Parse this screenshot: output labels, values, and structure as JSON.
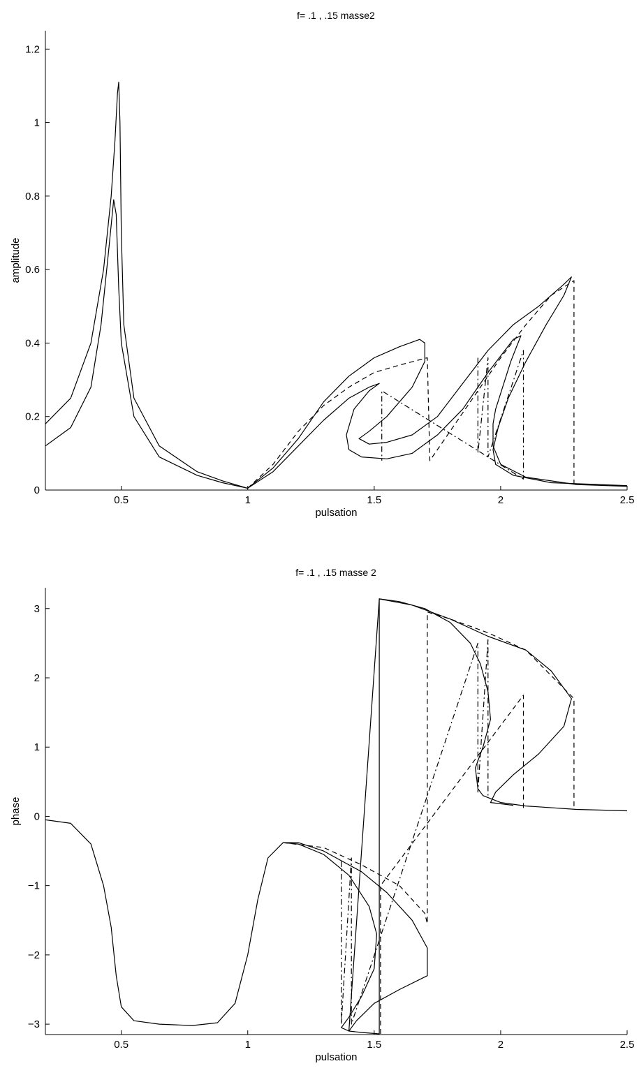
{
  "chart_data": [
    {
      "type": "line",
      "title": "f= .1 , .15 masse2",
      "xlabel": "pulsation",
      "ylabel": "amplitude",
      "xlim": [
        0.2,
        2.5
      ],
      "ylim": [
        0,
        1.25
      ],
      "xticks": [
        0.5,
        1,
        1.5,
        2,
        2.5
      ],
      "xtick_labels": [
        "0.5",
        "1",
        "1.5",
        "2",
        "2.5"
      ],
      "yticks": [
        0,
        0.2,
        0.4,
        0.6,
        0.8,
        1,
        1.2
      ],
      "ytick_labels": [
        "0",
        "0.2",
        "0.4",
        "0.6",
        "0.8",
        "1",
        "1.2"
      ],
      "grid": false,
      "series": [
        {
          "style": "solid",
          "points": [
            [
              0.2,
              0.18
            ],
            [
              0.3,
              0.25
            ],
            [
              0.38,
              0.4
            ],
            [
              0.43,
              0.6
            ],
            [
              0.46,
              0.8
            ],
            [
              0.475,
              0.95
            ],
            [
              0.485,
              1.08
            ],
            [
              0.49,
              1.11
            ],
            [
              0.495,
              1.0
            ],
            [
              0.5,
              0.7
            ],
            [
              0.51,
              0.45
            ],
            [
              0.55,
              0.25
            ],
            [
              0.65,
              0.12
            ],
            [
              0.8,
              0.05
            ],
            [
              0.9,
              0.025
            ],
            [
              1.0,
              0.005
            ],
            [
              1.1,
              0.05
            ],
            [
              1.2,
              0.12
            ],
            [
              1.3,
              0.19
            ],
            [
              1.4,
              0.25
            ],
            [
              1.48,
              0.28
            ],
            [
              1.52,
              0.29
            ],
            [
              1.48,
              0.27
            ],
            [
              1.42,
              0.22
            ],
            [
              1.39,
              0.15
            ],
            [
              1.4,
              0.11
            ],
            [
              1.45,
              0.09
            ],
            [
              1.55,
              0.085
            ],
            [
              1.65,
              0.1
            ],
            [
              1.75,
              0.15
            ],
            [
              1.85,
              0.22
            ],
            [
              1.95,
              0.32
            ],
            [
              2.05,
              0.41
            ],
            [
              2.08,
              0.42
            ],
            [
              2.04,
              0.35
            ],
            [
              1.98,
              0.22
            ],
            [
              1.97,
              0.18
            ],
            [
              1.97,
              0.12
            ],
            [
              2.0,
              0.07
            ],
            [
              2.1,
              0.035
            ],
            [
              2.3,
              0.015
            ],
            [
              2.5,
              0.01
            ]
          ]
        },
        {
          "style": "solid",
          "points": [
            [
              0.2,
              0.12
            ],
            [
              0.3,
              0.17
            ],
            [
              0.38,
              0.28
            ],
            [
              0.42,
              0.45
            ],
            [
              0.45,
              0.65
            ],
            [
              0.47,
              0.79
            ],
            [
              0.48,
              0.75
            ],
            [
              0.49,
              0.55
            ],
            [
              0.5,
              0.4
            ],
            [
              0.55,
              0.2
            ],
            [
              0.65,
              0.09
            ],
            [
              0.8,
              0.04
            ],
            [
              0.9,
              0.02
            ],
            [
              1.0,
              0.005
            ],
            [
              1.1,
              0.06
            ],
            [
              1.2,
              0.14
            ],
            [
              1.3,
              0.24
            ],
            [
              1.4,
              0.31
            ],
            [
              1.5,
              0.36
            ],
            [
              1.6,
              0.39
            ],
            [
              1.68,
              0.41
            ],
            [
              1.7,
              0.4
            ],
            [
              1.7,
              0.35
            ],
            [
              1.65,
              0.28
            ],
            [
              1.55,
              0.2
            ],
            [
              1.48,
              0.16
            ],
            [
              1.44,
              0.14
            ],
            [
              1.48,
              0.125
            ],
            [
              1.55,
              0.13
            ],
            [
              1.65,
              0.15
            ],
            [
              1.75,
              0.2
            ],
            [
              1.85,
              0.29
            ],
            [
              1.95,
              0.38
            ],
            [
              2.05,
              0.45
            ],
            [
              2.15,
              0.5
            ],
            [
              2.25,
              0.56
            ],
            [
              2.28,
              0.58
            ],
            [
              2.25,
              0.53
            ],
            [
              2.18,
              0.45
            ],
            [
              2.1,
              0.35
            ],
            [
              2.03,
              0.25
            ],
            [
              1.99,
              0.17
            ],
            [
              1.97,
              0.11
            ],
            [
              1.98,
              0.07
            ],
            [
              2.05,
              0.04
            ],
            [
              2.2,
              0.02
            ],
            [
              2.5,
              0.012
            ]
          ]
        },
        {
          "style": "dashed",
          "points": [
            [
              1.0,
              0.005
            ],
            [
              1.1,
              0.07
            ],
            [
              1.2,
              0.16
            ],
            [
              1.3,
              0.23
            ],
            [
              1.4,
              0.28
            ],
            [
              1.5,
              0.32
            ],
            [
              1.6,
              0.34
            ],
            [
              1.71,
              0.36
            ],
            [
              1.72,
              0.08
            ],
            [
              1.8,
              0.16
            ],
            [
              1.9,
              0.26
            ],
            [
              2.0,
              0.36
            ],
            [
              2.1,
              0.45
            ],
            [
              2.2,
              0.53
            ],
            [
              2.29,
              0.57
            ],
            [
              2.29,
              0.01
            ]
          ]
        },
        {
          "style": "dashdot",
          "points": [
            [
              1.91,
              0.36
            ],
            [
              1.91,
              0.1
            ],
            [
              1.95,
              0.36
            ],
            [
              1.95,
              0.09
            ],
            [
              2.09,
              0.38
            ],
            [
              2.09,
              0.03
            ],
            [
              1.53,
              0.27
            ],
            [
              1.53,
              0.08
            ]
          ]
        }
      ]
    },
    {
      "type": "line",
      "title": "f= .1 , .15 masse 2",
      "xlabel": "pulsation",
      "ylabel": "phase",
      "xlim": [
        0.2,
        2.5
      ],
      "ylim": [
        -3.15,
        3.3
      ],
      "xticks": [
        0.5,
        1,
        1.5,
        2,
        2.5
      ],
      "xtick_labels": [
        "0.5",
        "1",
        "1.5",
        "2",
        "2.5"
      ],
      "yticks": [
        -3,
        -2,
        -1,
        0,
        1,
        2,
        3
      ],
      "ytick_labels": [
        "−3",
        "−2",
        "−1",
        "0",
        "1",
        "2",
        "3"
      ],
      "grid": false,
      "series": [
        {
          "style": "solid",
          "points": [
            [
              0.2,
              -0.05
            ],
            [
              0.3,
              -0.1
            ],
            [
              0.38,
              -0.4
            ],
            [
              0.43,
              -1.0
            ],
            [
              0.46,
              -1.6
            ],
            [
              0.48,
              -2.3
            ],
            [
              0.5,
              -2.75
            ],
            [
              0.55,
              -2.95
            ],
            [
              0.65,
              -3.0
            ],
            [
              0.78,
              -3.02
            ],
            [
              0.88,
              -2.98
            ],
            [
              0.95,
              -2.7
            ],
            [
              1.0,
              -2.0
            ],
            [
              1.04,
              -1.2
            ],
            [
              1.08,
              -0.6
            ],
            [
              1.14,
              -0.38
            ],
            [
              1.2,
              -0.4
            ],
            [
              1.3,
              -0.55
            ],
            [
              1.4,
              -0.85
            ],
            [
              1.48,
              -1.3
            ],
            [
              1.51,
              -1.7
            ],
            [
              1.5,
              -2.2
            ],
            [
              1.45,
              -2.6
            ],
            [
              1.4,
              -2.9
            ],
            [
              1.37,
              -3.05
            ],
            [
              1.4,
              -3.1
            ],
            [
              1.45,
              -3.12
            ],
            [
              1.52,
              -3.14
            ],
            [
              1.52,
              3.14
            ],
            [
              1.6,
              3.1
            ],
            [
              1.7,
              3.0
            ],
            [
              1.8,
              2.8
            ],
            [
              1.88,
              2.5
            ],
            [
              1.92,
              2.2
            ],
            [
              1.95,
              1.8
            ],
            [
              1.96,
              1.4
            ],
            [
              1.93,
              1.0
            ],
            [
              1.9,
              0.7
            ],
            [
              1.91,
              0.4
            ],
            [
              1.93,
              0.3
            ],
            [
              2.0,
              0.2
            ],
            [
              2.1,
              0.15
            ],
            [
              2.3,
              0.1
            ],
            [
              2.5,
              0.08
            ]
          ]
        },
        {
          "style": "solid",
          "points": [
            [
              1.14,
              -0.38
            ],
            [
              1.2,
              -0.38
            ],
            [
              1.3,
              -0.5
            ],
            [
              1.45,
              -0.8
            ],
            [
              1.55,
              -1.1
            ],
            [
              1.65,
              -1.5
            ],
            [
              1.71,
              -1.9
            ],
            [
              1.71,
              -2.3
            ],
            [
              1.6,
              -2.5
            ],
            [
              1.5,
              -2.7
            ],
            [
              1.43,
              -2.95
            ],
            [
              1.4,
              -3.1
            ],
            [
              1.52,
              3.14
            ],
            [
              1.65,
              3.05
            ],
            [
              1.8,
              2.85
            ],
            [
              1.95,
              2.6
            ],
            [
              2.1,
              2.4
            ],
            [
              2.2,
              2.1
            ],
            [
              2.28,
              1.7
            ],
            [
              2.25,
              1.3
            ],
            [
              2.15,
              0.9
            ],
            [
              2.05,
              0.6
            ],
            [
              1.98,
              0.35
            ],
            [
              1.96,
              0.2
            ],
            [
              2.05,
              0.16
            ]
          ]
        },
        {
          "style": "dashed",
          "points": [
            [
              1.14,
              -0.38
            ],
            [
              1.3,
              -0.45
            ],
            [
              1.45,
              -0.7
            ],
            [
              1.6,
              -1.0
            ],
            [
              1.7,
              -1.4
            ],
            [
              1.71,
              -1.55
            ],
            [
              1.71,
              2.95
            ],
            [
              1.8,
              2.85
            ],
            [
              1.95,
              2.65
            ],
            [
              2.1,
              2.4
            ],
            [
              2.29,
              1.7
            ],
            [
              2.29,
              0.1
            ]
          ]
        },
        {
          "style": "dashdot",
          "points": [
            [
              1.37,
              -0.65
            ],
            [
              1.37,
              -3.0
            ],
            [
              1.41,
              -0.6
            ],
            [
              1.41,
              -3.0
            ],
            [
              1.91,
              2.5
            ],
            [
              1.91,
              0.35
            ],
            [
              1.95,
              2.55
            ],
            [
              1.95,
              0.3
            ]
          ]
        },
        {
          "style": "dashed",
          "points": [
            [
              1.525,
              -3.14
            ],
            [
              1.525,
              -1.0
            ],
            [
              2.09,
              1.75
            ],
            [
              2.09,
              0.12
            ]
          ]
        }
      ]
    }
  ]
}
